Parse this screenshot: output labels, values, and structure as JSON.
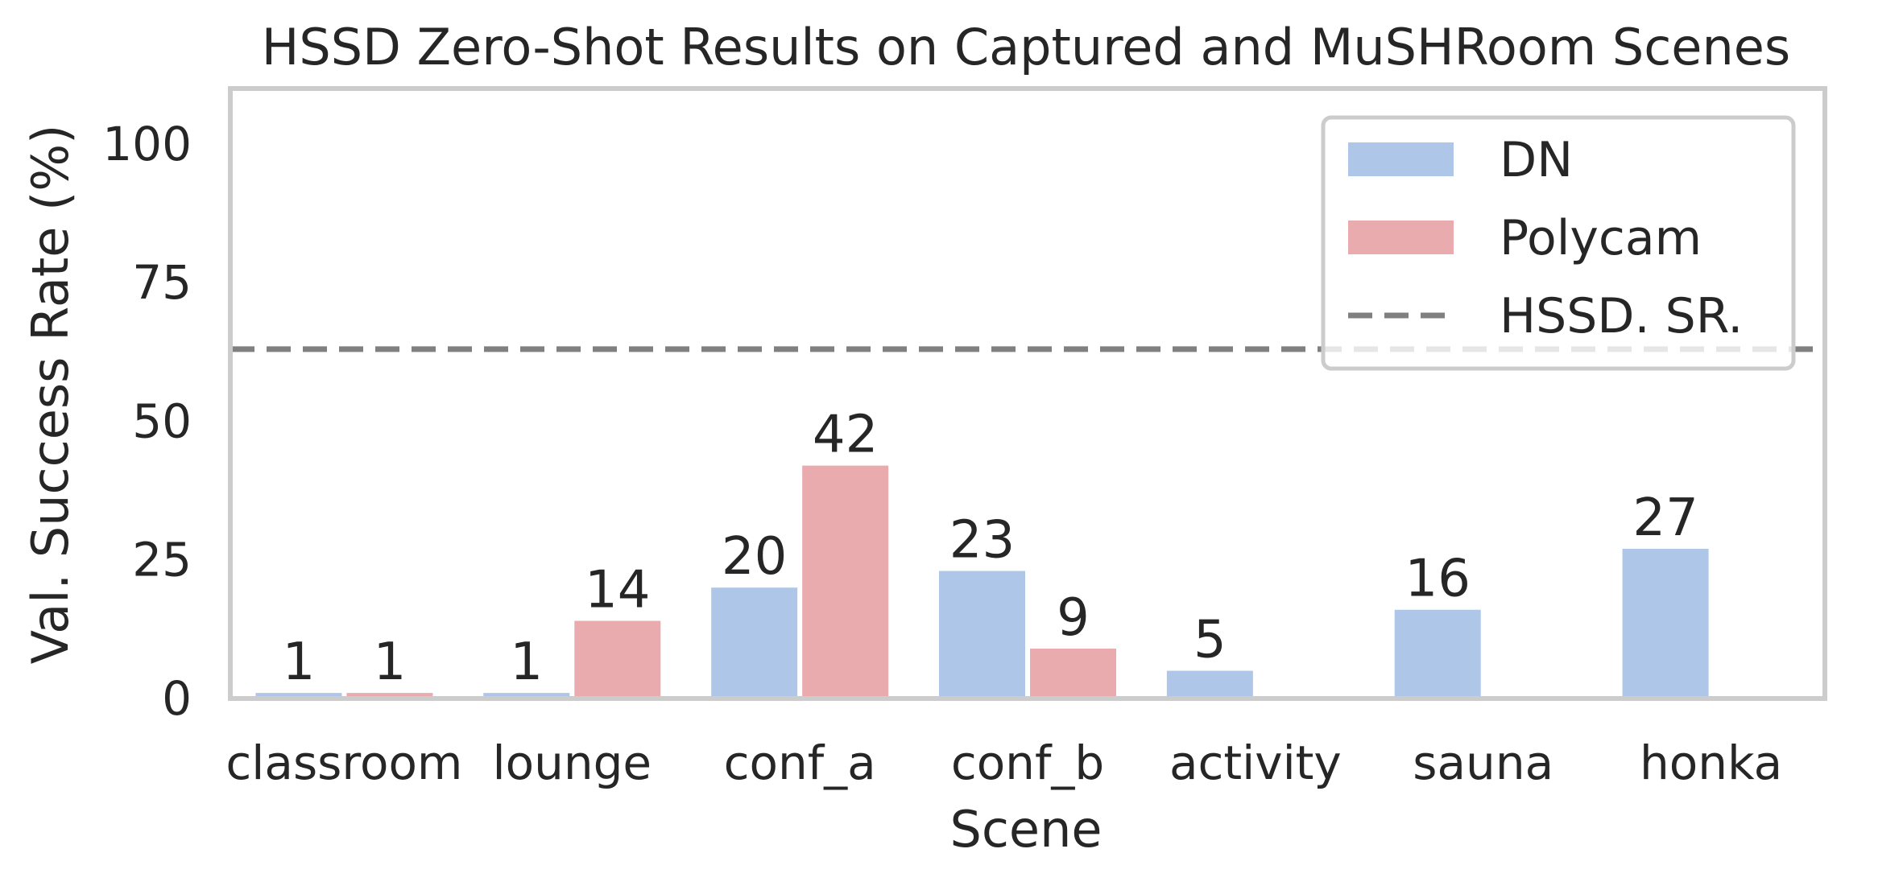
{
  "chart_data": {
    "type": "bar",
    "title": "HSSD Zero-Shot Results on Captured and MuSHRoom Scenes",
    "xlabel": "Scene",
    "ylabel": "Val. Success Rate (%)",
    "ylim": [
      0,
      110
    ],
    "yticks": [
      0,
      25,
      50,
      75,
      100
    ],
    "categories": [
      "classroom",
      "lounge",
      "conf_a",
      "conf_b",
      "activity",
      "sauna",
      "honka"
    ],
    "series": [
      {
        "name": "DN",
        "color": "#aec7e8",
        "values": [
          1,
          1,
          20,
          23,
          5,
          16,
          27
        ],
        "labels": [
          "1",
          "1",
          "20",
          "23",
          "5",
          "16",
          "27"
        ]
      },
      {
        "name": "Polycam",
        "color": "#eaabae",
        "values": [
          1,
          14,
          42,
          9,
          null,
          null,
          null
        ],
        "labels": [
          "1",
          "14",
          "42",
          "9",
          null,
          null,
          null
        ]
      }
    ],
    "reference_line": {
      "name": "HSSD. SR.",
      "value": 63,
      "color": "#808080",
      "style": "dashed"
    },
    "grid": false,
    "legend": {
      "placement": "top-right",
      "entries": [
        "DN",
        "Polycam",
        "HSSD. SR."
      ]
    },
    "frame_color": "#cccccc",
    "text_color": "#262626"
  }
}
